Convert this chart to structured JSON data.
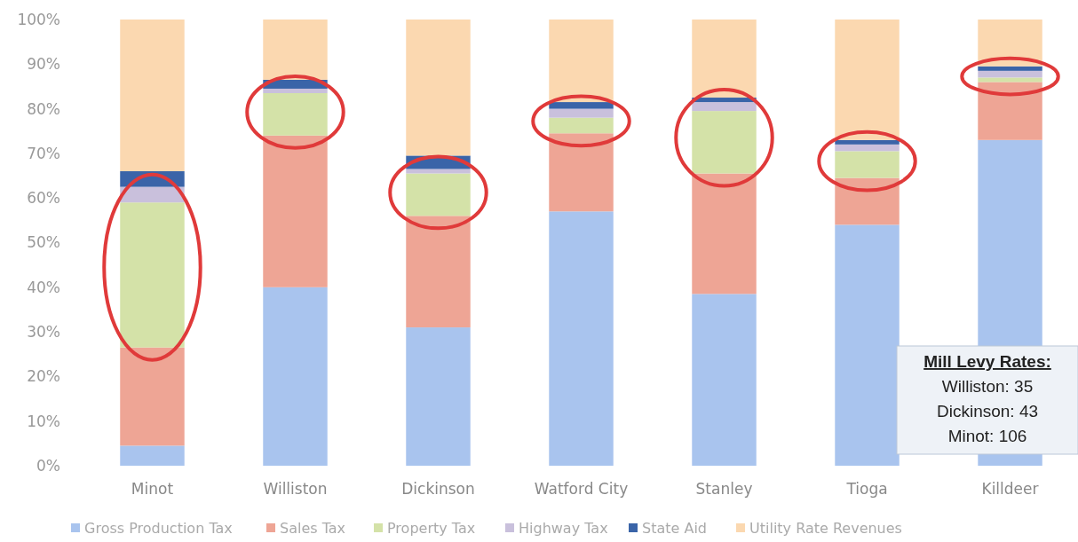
{
  "chart_data": {
    "type": "bar",
    "stacked": true,
    "categories": [
      "Minot",
      "Williston",
      "Dickinson",
      "Watford City",
      "Stanley",
      "Tioga",
      "Killdeer"
    ],
    "series": [
      {
        "name": "Gross Production Tax",
        "color": "#a9c4ee",
        "values": [
          4.5,
          40,
          31,
          57,
          38.5,
          54,
          73
        ]
      },
      {
        "name": "Sales Tax",
        "color": "#eea595",
        "values": [
          22,
          34,
          25,
          17.5,
          27,
          10.5,
          13
        ]
      },
      {
        "name": "Property Tax",
        "color": "#d4e2a8",
        "values": [
          32.5,
          9.5,
          9.5,
          3.5,
          14,
          6,
          1
        ]
      },
      {
        "name": "Highway Tax",
        "color": "#c9c0dc",
        "values": [
          3.5,
          1,
          1,
          2,
          2,
          1.5,
          1.5
        ]
      },
      {
        "name": "State Aid",
        "color": "#3a64a8",
        "values": [
          3.5,
          2,
          3,
          1.5,
          1,
          1,
          1
        ]
      },
      {
        "name": "Utility Rate Revenues",
        "color": "#fbd8b0",
        "values": [
          34,
          13.5,
          30.5,
          18.5,
          17.5,
          27,
          10.5
        ]
      }
    ],
    "ylim": [
      0,
      100
    ],
    "yticks": [
      {
        "value": 0,
        "label": "0%"
      },
      {
        "value": 10,
        "label": "10%"
      },
      {
        "value": 20,
        "label": "20%"
      },
      {
        "value": 30,
        "label": "30%"
      },
      {
        "value": 40,
        "label": "40%"
      },
      {
        "value": 50,
        "label": "50%"
      },
      {
        "value": 60,
        "label": "60%"
      },
      {
        "value": 70,
        "label": "70%"
      },
      {
        "value": 80,
        "label": "80%"
      },
      {
        "value": 90,
        "label": "90%"
      },
      {
        "value": 100,
        "label": "100%"
      }
    ],
    "grid": false,
    "legend": "bottom",
    "annotations": [
      "Mill Levy Rates:",
      "Williston: 35",
      "Dickinson: 43",
      "Minot: 106"
    ]
  }
}
